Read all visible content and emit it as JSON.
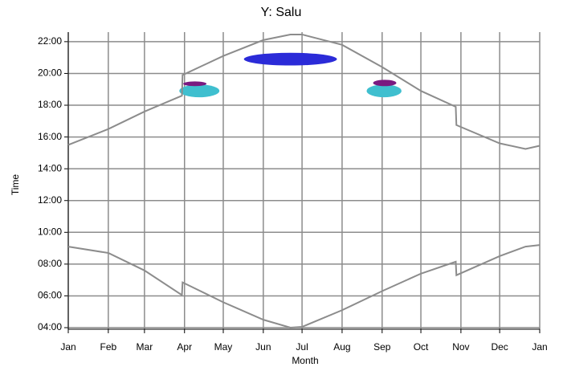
{
  "chart_data": {
    "type": "line",
    "title": "Y: Salu",
    "xlabel": "Month",
    "ylabel": "Time",
    "xlim": [
      0,
      365
    ],
    "ylim": [
      3.9,
      22.6
    ],
    "grid": true,
    "xticks": [
      {
        "value": 0,
        "label": "Jan"
      },
      {
        "value": 31,
        "label": "Feb"
      },
      {
        "value": 59,
        "label": "Mar"
      },
      {
        "value": 90,
        "label": "Apr"
      },
      {
        "value": 120,
        "label": "May"
      },
      {
        "value": 151,
        "label": "Jun"
      },
      {
        "value": 181,
        "label": "Jul"
      },
      {
        "value": 212,
        "label": "Aug"
      },
      {
        "value": 243,
        "label": "Sep"
      },
      {
        "value": 273,
        "label": "Oct"
      },
      {
        "value": 304,
        "label": "Nov"
      },
      {
        "value": 334,
        "label": "Dec"
      },
      {
        "value": 365,
        "label": "Jan"
      }
    ],
    "yticks": [
      {
        "value": 4,
        "label": "04:00"
      },
      {
        "value": 6,
        "label": "06:00"
      },
      {
        "value": 8,
        "label": "08:00"
      },
      {
        "value": 10,
        "label": "10:00"
      },
      {
        "value": 12,
        "label": "12:00"
      },
      {
        "value": 14,
        "label": "14:00"
      },
      {
        "value": 16,
        "label": "16:00"
      },
      {
        "value": 18,
        "label": "18:00"
      },
      {
        "value": 20,
        "label": "20:00"
      },
      {
        "value": 22,
        "label": "22:00"
      }
    ],
    "series": [
      {
        "color": "#8c8c8c",
        "x": [
          0,
          31,
          59,
          88,
          88.5,
          120,
          151,
          172,
          181,
          212,
          243,
          273,
          300,
          300.5,
          334,
          354,
          365
        ],
        "values": [
          15.5,
          16.5,
          17.6,
          18.6,
          19.9,
          21.1,
          22.1,
          22.45,
          22.45,
          21.8,
          20.4,
          18.9,
          17.9,
          16.75,
          15.6,
          15.25,
          15.45
        ]
      },
      {
        "color": "#8c8c8c",
        "x": [
          0,
          31,
          59,
          88,
          88.5,
          120,
          151,
          172,
          181,
          212,
          243,
          273,
          300,
          300.5,
          334,
          354,
          365
        ],
        "values": [
          9.1,
          8.7,
          7.6,
          6.05,
          6.85,
          5.6,
          4.5,
          4.0,
          4.05,
          5.1,
          6.3,
          7.4,
          8.15,
          7.3,
          8.5,
          9.1,
          9.2
        ]
      }
    ],
    "areas": [
      {
        "color": "#3fbfcf",
        "x": [
          86,
          117
        ],
        "y": [
          18.5,
          19.3
        ]
      },
      {
        "color": "#7a1a80",
        "x": [
          89,
          107
        ],
        "y": [
          19.2,
          19.5
        ]
      },
      {
        "color": "#2b2bd8",
        "x": [
          136,
          208
        ],
        "y": [
          20.5,
          21.3
        ]
      },
      {
        "color": "#3fbfcf",
        "x": [
          231,
          258
        ],
        "y": [
          18.5,
          19.3
        ]
      },
      {
        "color": "#7a1a80",
        "x": [
          236,
          254
        ],
        "y": [
          19.2,
          19.6
        ]
      }
    ]
  }
}
